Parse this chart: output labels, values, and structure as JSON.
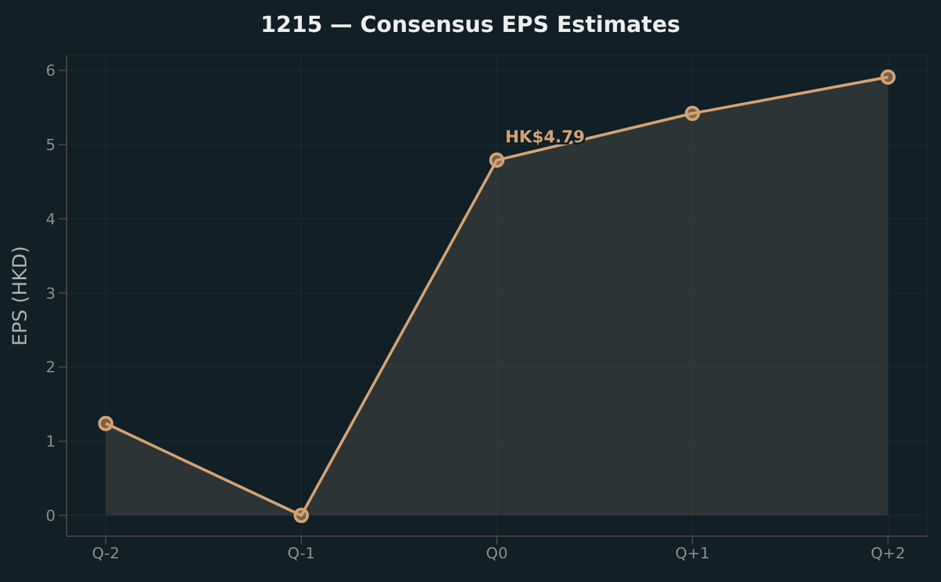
{
  "chart_data": {
    "type": "area",
    "title": "1215 — Consensus EPS Estimates",
    "ylabel": "EPS (HKD)",
    "categories": [
      "Q-2",
      "Q-1",
      "Q0",
      "Q+1",
      "Q+2"
    ],
    "series": [
      {
        "color": "#d4a373",
        "values": [
          1.24,
          0,
          4.79,
          5.42,
          5.91
        ]
      }
    ],
    "ylim": [
      -0.28,
      6.2
    ],
    "yticks": [
      0,
      1,
      2,
      3,
      4,
      5,
      6
    ],
    "grid": true,
    "marker": "circle",
    "line_style": "solid",
    "annotations": [
      {
        "text": "HK$4.79",
        "x": "Q0",
        "y": 4.79
      }
    ]
  }
}
